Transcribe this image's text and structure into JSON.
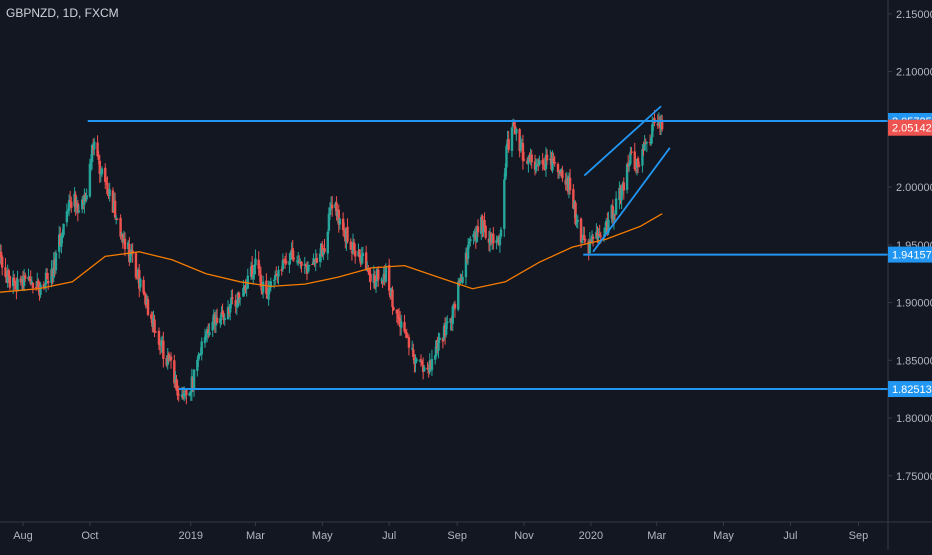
{
  "header": {
    "symbol_line": "GBPNZD, 1D, FXCM"
  },
  "colors": {
    "background": "#131722",
    "axis_text": "#b2b5be",
    "axis_line": "#363a45",
    "candle_up": "#26a69a",
    "candle_down": "#ef5350",
    "moving_average": "#f57c00",
    "drawing": "#2196f3",
    "last_price_badge": "#ef5350",
    "level_badge": "#2196f3"
  },
  "chart_data": {
    "type": "candlestick",
    "title": "GBPNZD, 1D, FXCM",
    "y_ticks": [
      "2.15000",
      "2.10000",
      "2.05000",
      "2.00000",
      "1.95000",
      "1.90000",
      "1.85000",
      "1.80000",
      "1.75000"
    ],
    "x_ticks": [
      {
        "label": "Aug",
        "date": "2018-08-01"
      },
      {
        "label": "Oct",
        "date": "2018-10-01"
      },
      {
        "label": "2019",
        "date": "2019-01-01"
      },
      {
        "label": "Mar",
        "date": "2019-03-01"
      },
      {
        "label": "May",
        "date": "2019-05-01"
      },
      {
        "label": "Jul",
        "date": "2019-07-01"
      },
      {
        "label": "Sep",
        "date": "2019-09-01"
      },
      {
        "label": "Nov",
        "date": "2019-11-01"
      },
      {
        "label": "2020",
        "date": "2020-01-01"
      },
      {
        "label": "Mar",
        "date": "2020-03-01"
      },
      {
        "label": "May",
        "date": "2020-05-01"
      },
      {
        "label": "Jul",
        "date": "2020-07-01"
      },
      {
        "label": "Sep",
        "date": "2020-09-01"
      }
    ],
    "ylim": [
      1.71,
      2.162
    ],
    "xlim": [
      "2018-07-11",
      "2020-09-28"
    ],
    "price_path": [
      [
        "2018-07-11",
        1.94
      ],
      [
        "2018-07-20",
        1.915
      ],
      [
        "2018-08-01",
        1.918
      ],
      [
        "2018-08-15",
        1.912
      ],
      [
        "2018-08-28",
        1.928
      ],
      [
        "2018-09-08",
        1.97
      ],
      [
        "2018-09-15",
        1.99
      ],
      [
        "2018-09-22",
        1.982
      ],
      [
        "2018-09-28",
        1.99
      ],
      [
        "2018-10-04",
        2.04
      ],
      [
        "2018-10-11",
        2.012
      ],
      [
        "2018-10-20",
        1.99
      ],
      [
        "2018-10-31",
        1.955
      ],
      [
        "2018-11-10",
        1.935
      ],
      [
        "2018-11-20",
        1.9
      ],
      [
        "2018-11-28",
        1.885
      ],
      [
        "2018-12-06",
        1.86
      ],
      [
        "2018-12-14",
        1.842
      ],
      [
        "2018-12-22",
        1.822
      ],
      [
        "2019-01-03",
        1.832
      ],
      [
        "2019-01-12",
        1.862
      ],
      [
        "2019-01-22",
        1.885
      ],
      [
        "2019-02-01",
        1.89
      ],
      [
        "2019-02-12",
        1.903
      ],
      [
        "2019-02-22",
        1.922
      ],
      [
        "2019-03-01",
        1.932
      ],
      [
        "2019-03-10",
        1.905
      ],
      [
        "2019-03-22",
        1.922
      ],
      [
        "2019-04-01",
        1.94
      ],
      [
        "2019-04-12",
        1.928
      ],
      [
        "2019-04-24",
        1.938
      ],
      [
        "2019-05-04",
        1.952
      ],
      [
        "2019-05-10",
        1.988
      ],
      [
        "2019-05-22",
        1.96
      ],
      [
        "2019-06-05",
        1.938
      ],
      [
        "2019-06-17",
        1.92
      ],
      [
        "2019-06-28",
        1.925
      ],
      [
        "2019-07-05",
        1.898
      ],
      [
        "2019-07-15",
        1.872
      ],
      [
        "2019-07-26",
        1.85
      ],
      [
        "2019-08-05",
        1.842
      ],
      [
        "2019-08-15",
        1.87
      ],
      [
        "2019-08-25",
        1.88
      ],
      [
        "2019-09-03",
        1.918
      ],
      [
        "2019-09-12",
        1.948
      ],
      [
        "2019-09-22",
        1.97
      ],
      [
        "2019-10-01",
        1.958
      ],
      [
        "2019-10-10",
        1.955
      ],
      [
        "2019-10-16",
        2.03
      ],
      [
        "2019-10-22",
        2.055
      ],
      [
        "2019-11-01",
        2.025
      ],
      [
        "2019-11-12",
        2.015
      ],
      [
        "2019-11-24",
        2.022
      ],
      [
        "2019-12-06",
        2.012
      ],
      [
        "2019-12-13",
        2.0
      ],
      [
        "2019-12-20",
        1.965
      ],
      [
        "2019-12-28",
        1.946
      ],
      [
        "2020-01-08",
        1.958
      ],
      [
        "2020-01-18",
        1.972
      ],
      [
        "2020-01-28",
        1.995
      ],
      [
        "2020-02-07",
        2.025
      ],
      [
        "2020-02-14",
        2.018
      ],
      [
        "2020-02-22",
        2.04
      ],
      [
        "2020-02-28",
        2.058
      ],
      [
        "2020-03-06",
        2.051
      ]
    ],
    "moving_average_path": [
      [
        "2018-07-11",
        1.909
      ],
      [
        "2018-08-15",
        1.912
      ],
      [
        "2018-09-15",
        1.918
      ],
      [
        "2018-10-15",
        1.94
      ],
      [
        "2018-11-15",
        1.944
      ],
      [
        "2018-12-15",
        1.937
      ],
      [
        "2019-01-15",
        1.925
      ],
      [
        "2019-02-15",
        1.918
      ],
      [
        "2019-03-15",
        1.914
      ],
      [
        "2019-04-15",
        1.916
      ],
      [
        "2019-05-15",
        1.922
      ],
      [
        "2019-06-15",
        1.93
      ],
      [
        "2019-07-15",
        1.932
      ],
      [
        "2019-08-15",
        1.922
      ],
      [
        "2019-09-15",
        1.912
      ],
      [
        "2019-10-15",
        1.918
      ],
      [
        "2019-11-15",
        1.935
      ],
      [
        "2019-12-15",
        1.948
      ],
      [
        "2020-01-15",
        1.955
      ],
      [
        "2020-02-15",
        1.966
      ],
      [
        "2020-03-06",
        1.977
      ]
    ],
    "annotations": {
      "horizontal_levels": [
        {
          "price": 2.05725,
          "label": "2.05725",
          "from": "2018-09-29",
          "to": "2020-09-28"
        },
        {
          "price": 1.94157,
          "label": "1.94157",
          "from": "2019-12-25",
          "to": "2020-09-28"
        },
        {
          "price": 1.82513,
          "label": "1.82513",
          "from": "2018-12-21",
          "to": "2020-09-28"
        }
      ],
      "rising_channel": [
        {
          "from": [
            "2019-12-26",
            2.01
          ],
          "to": [
            "2020-03-05",
            2.07
          ]
        },
        {
          "from": [
            "2020-01-03",
            1.944
          ],
          "to": [
            "2020-03-13",
            2.034
          ]
        }
      ],
      "last_price": {
        "price": 2.05142,
        "label": "2.05142"
      }
    }
  }
}
